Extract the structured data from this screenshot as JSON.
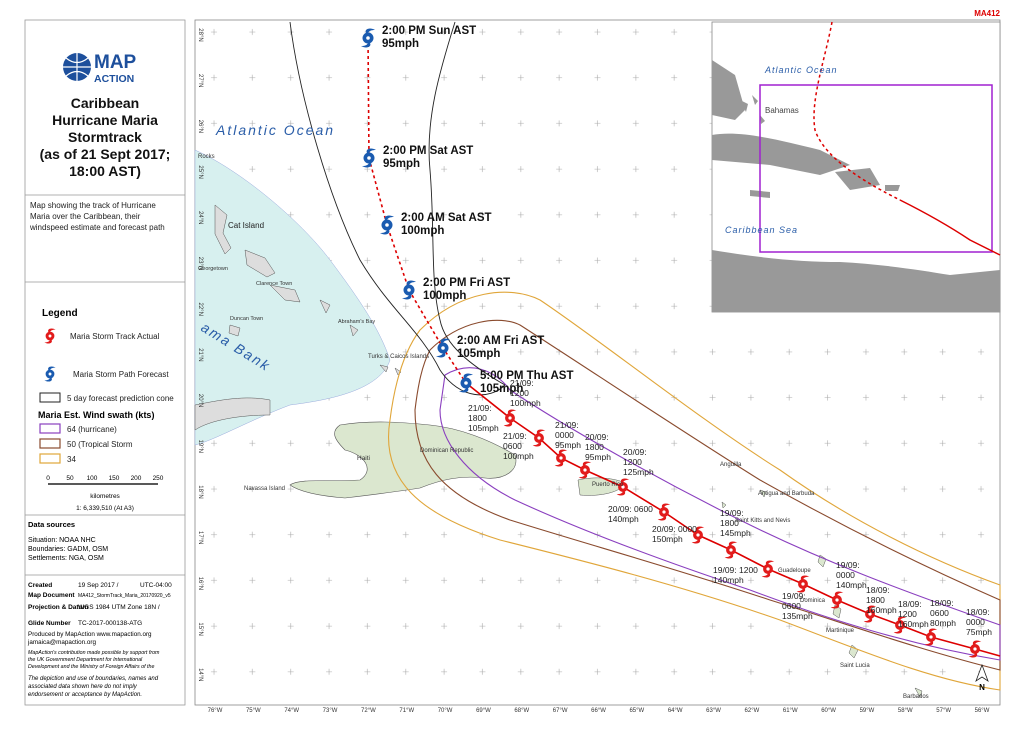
{
  "map_code": "MA412",
  "logo": {
    "line1": "MAP",
    "line2": "ACTION"
  },
  "title": [
    "Caribbean",
    "Hurricane Maria",
    "Stormtrack",
    "(as of 21 Sept 2017;",
    "18:00 AST)"
  ],
  "description": [
    "Map showing the track of Hurricane",
    "Maria over the Caribbean, their",
    "windspeed estimate and forecast path"
  ],
  "legend": {
    "title": "Legend",
    "actual": "Maria Storm Track Actual",
    "forecast": "Maria Storm Path Forecast",
    "cone": "5 day forecast prediction cone",
    "swath_title": "Maria Est. Wind swath (kts)",
    "swath": [
      "64 (hurricane)",
      "50 (Tropical Storm",
      "34"
    ]
  },
  "scale": {
    "ticks": [
      "0",
      "50",
      "100",
      "150",
      "200",
      "250"
    ],
    "unit": "kilometres",
    "ratio": "1: 6,339,510 (At A3)"
  },
  "sources": {
    "title": "Data sources",
    "lines": [
      "Situation: NOAA NHC",
      "Boundaries: GADM, OSM",
      "Settlements: NGA, OSM"
    ]
  },
  "meta": [
    [
      "Created",
      "19 Sep 2017 /",
      "UTC-04:00"
    ],
    [
      "Map Document",
      "MA412_StormTrack_Maria_20170920_v5"
    ],
    [
      "Projection & Datum",
      "WGS 1984 UTM Zone 18N /"
    ],
    [
      "Glide Number",
      "TC-2017-000138-ATG"
    ]
  ],
  "credits": [
    "Produced by MapAction www.mapaction.org",
    "jamaica@mapaction.org"
  ],
  "funding": [
    "MapAction's contribution made possible by support from",
    "the UK Government Department for International",
    "Development and the Ministry of Foreign Affairs of the"
  ],
  "disclaimer": [
    "The depiction and use of boundaries, names and",
    "associated data shown here do not imply",
    "endorsement or acceptance by MapAction."
  ],
  "map": {
    "places": [
      "Atlantic Ocean",
      "ama Bank",
      "Cat Island",
      "Haiti",
      "Dominican Republic",
      "Navassa Island",
      "Turks & Caicos Islands",
      "Puerto Rico",
      "Anguilla",
      "Antigua and Barbuda",
      "Saint Kitts and Nevis",
      "Guadeloupe",
      "Dominica",
      "Martinique",
      "Saint Lucia",
      "Barbados",
      "Rocks",
      "Georgetown",
      "Clarence Town",
      "Duncan Town",
      "Abraham's Bay"
    ],
    "forecast": [
      {
        "time": "2:00 PM Sun AST",
        "wind": "95mph"
      },
      {
        "time": "2:00 PM Sat AST",
        "wind": "95mph"
      },
      {
        "time": "2:00 AM Sat AST",
        "wind": "100mph"
      },
      {
        "time": "2:00 PM Fri AST",
        "wind": "100mph"
      },
      {
        "time": "2:00 AM Fri AST",
        "wind": "105mph"
      },
      {
        "time": "5:00 PM Thu AST",
        "wind": "105mph"
      }
    ],
    "actual": [
      [
        "21/09:",
        "1200",
        "100mph"
      ],
      [
        "21/09:",
        "1800",
        "105mph"
      ],
      [
        "21/09:",
        "0600",
        "100mph"
      ],
      [
        "21/09:",
        "0000",
        "95mph"
      ],
      [
        "20/09:",
        "1800",
        "95mph"
      ],
      [
        "20/09:",
        "1200",
        "125mph"
      ],
      [
        "20/09: 0600",
        "140mph"
      ],
      [
        "20/09: 0000",
        "150mph"
      ],
      [
        "19/09:",
        "1800",
        "145mph"
      ],
      [
        "19/09: 1200",
        "140mph"
      ],
      [
        "19/09:",
        "0600",
        "135mph"
      ],
      [
        "19/09:",
        "0000",
        "140mph"
      ],
      [
        "18/09:",
        "1800",
        "160mph"
      ],
      [
        "18/09:",
        "1200",
        "160mph"
      ],
      [
        "18/09:",
        "0600",
        "80mph"
      ],
      [
        "18/09:",
        "0000",
        "75mph"
      ]
    ],
    "lat_labels": [
      "28°N",
      "27°N",
      "26°N",
      "25°N",
      "24°N",
      "23°N",
      "22°N",
      "21°N",
      "20°N",
      "19°N",
      "18°N",
      "17°N",
      "16°N",
      "15°N",
      "14°N"
    ],
    "lon_labels": [
      "76°W",
      "75°W",
      "74°W",
      "73°W",
      "72°W",
      "71°W",
      "70°W",
      "69°W",
      "68°W",
      "67°W",
      "66°W",
      "65°W",
      "64°W",
      "63°W",
      "62°W",
      "61°W",
      "60°W",
      "59°W",
      "58°W",
      "57°W",
      "56°W"
    ],
    "north": "N"
  },
  "inset": {
    "labels": [
      "Atlantic Ocean",
      "Bahamas",
      "Caribbean Sea"
    ]
  }
}
